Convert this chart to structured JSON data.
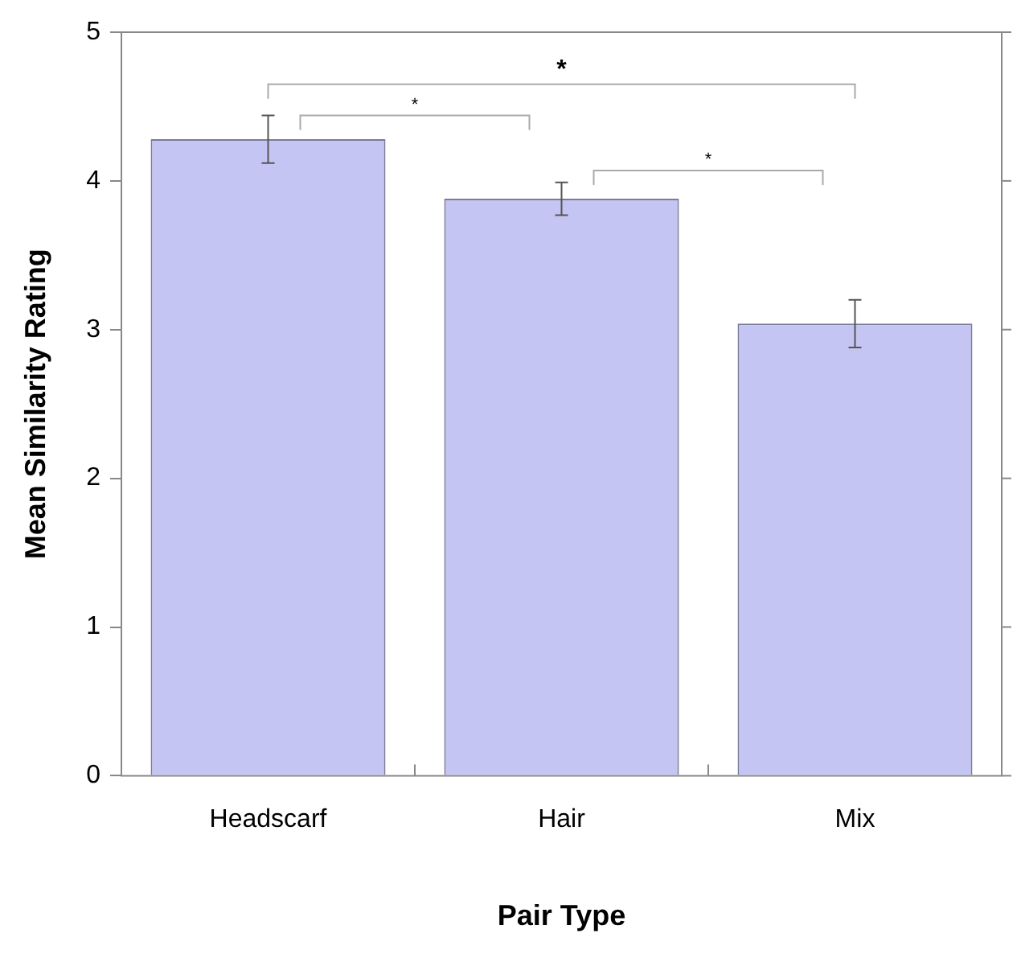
{
  "chart_data": {
    "type": "bar",
    "xlabel": "Pair Type",
    "ylabel": "Mean Similarity Rating",
    "categories": [
      "Headscarf",
      "Hair",
      "Mix"
    ],
    "values": [
      4.28,
      3.88,
      3.04
    ],
    "errors": [
      0.16,
      0.11,
      0.16
    ],
    "color": "#c5c5f3",
    "ylim": [
      0,
      5
    ],
    "yticks": [
      0,
      1,
      2,
      3,
      4,
      5
    ],
    "grid": false,
    "legend": false,
    "annotations": [
      "*",
      "*",
      "*"
    ]
  }
}
